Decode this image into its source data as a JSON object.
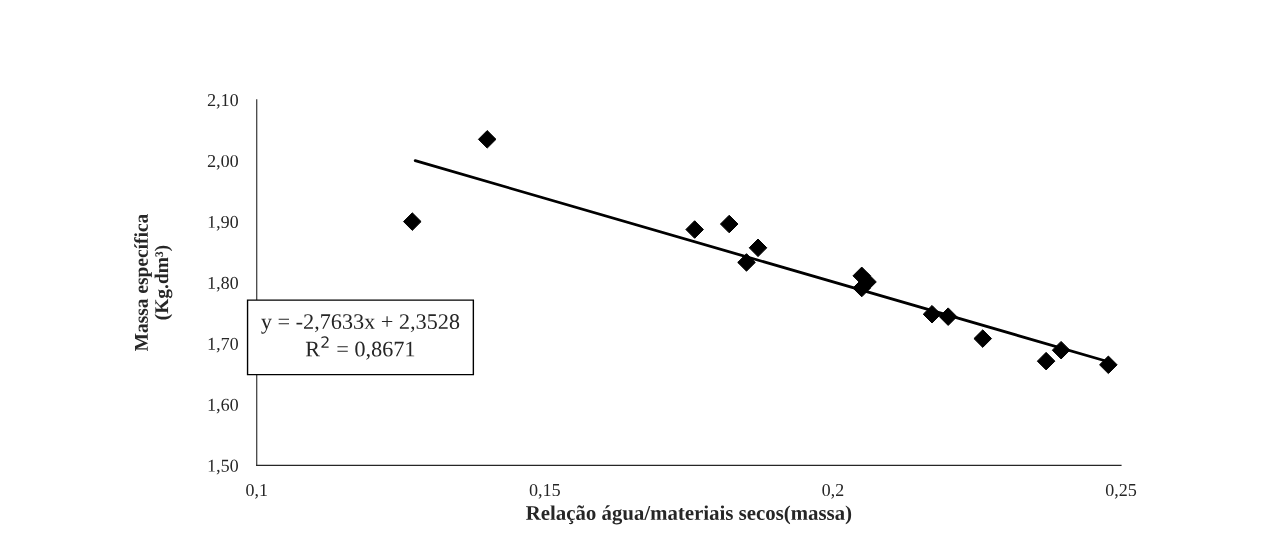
{
  "chart_data": {
    "type": "scatter",
    "xlabel": "Relação água/materiais secos(massa)",
    "ylabel": "Massa específica\n(Kg.dm³)",
    "xlim": [
      0.1,
      0.25
    ],
    "ylim": [
      1.5,
      2.1
    ],
    "xticks": [
      {
        "value": 0.1,
        "label": "0,1"
      },
      {
        "value": 0.15,
        "label": "0,15"
      },
      {
        "value": 0.2,
        "label": "0,2"
      },
      {
        "value": 0.25,
        "label": "0,25"
      }
    ],
    "yticks": [
      {
        "value": 1.5,
        "label": "1,50"
      },
      {
        "value": 1.6,
        "label": "1,60"
      },
      {
        "value": 1.7,
        "label": "1,70"
      },
      {
        "value": 1.8,
        "label": "1,80"
      },
      {
        "value": 1.9,
        "label": "1,90"
      },
      {
        "value": 2.0,
        "label": "2,00"
      },
      {
        "value": 2.1,
        "label": "2,10"
      }
    ],
    "grid": false,
    "marker": "diamond",
    "series": [
      {
        "color": "#000000",
        "x": [
          0.127,
          0.14,
          0.176,
          0.182,
          0.185,
          0.187,
          0.205,
          0.206,
          0.205,
          0.2172,
          0.22,
          0.226,
          0.237,
          0.2396,
          0.2478
        ],
        "values": [
          1.9,
          2.035,
          1.887,
          1.896,
          1.833,
          1.857,
          1.811,
          1.801,
          1.791,
          1.748,
          1.744,
          1.708,
          1.671,
          1.689,
          1.665
        ]
      },
      {
        "type": "line",
        "color": "#000000",
        "marker": "none",
        "line_style": "solid",
        "x": [
          0.1275,
          0.2478
        ],
        "values": [
          2.0,
          1.67
        ]
      }
    ],
    "annotations": [
      "y = -2,7633x + 2,3528\nR$^{2}$ = 0,8671"
    ]
  }
}
